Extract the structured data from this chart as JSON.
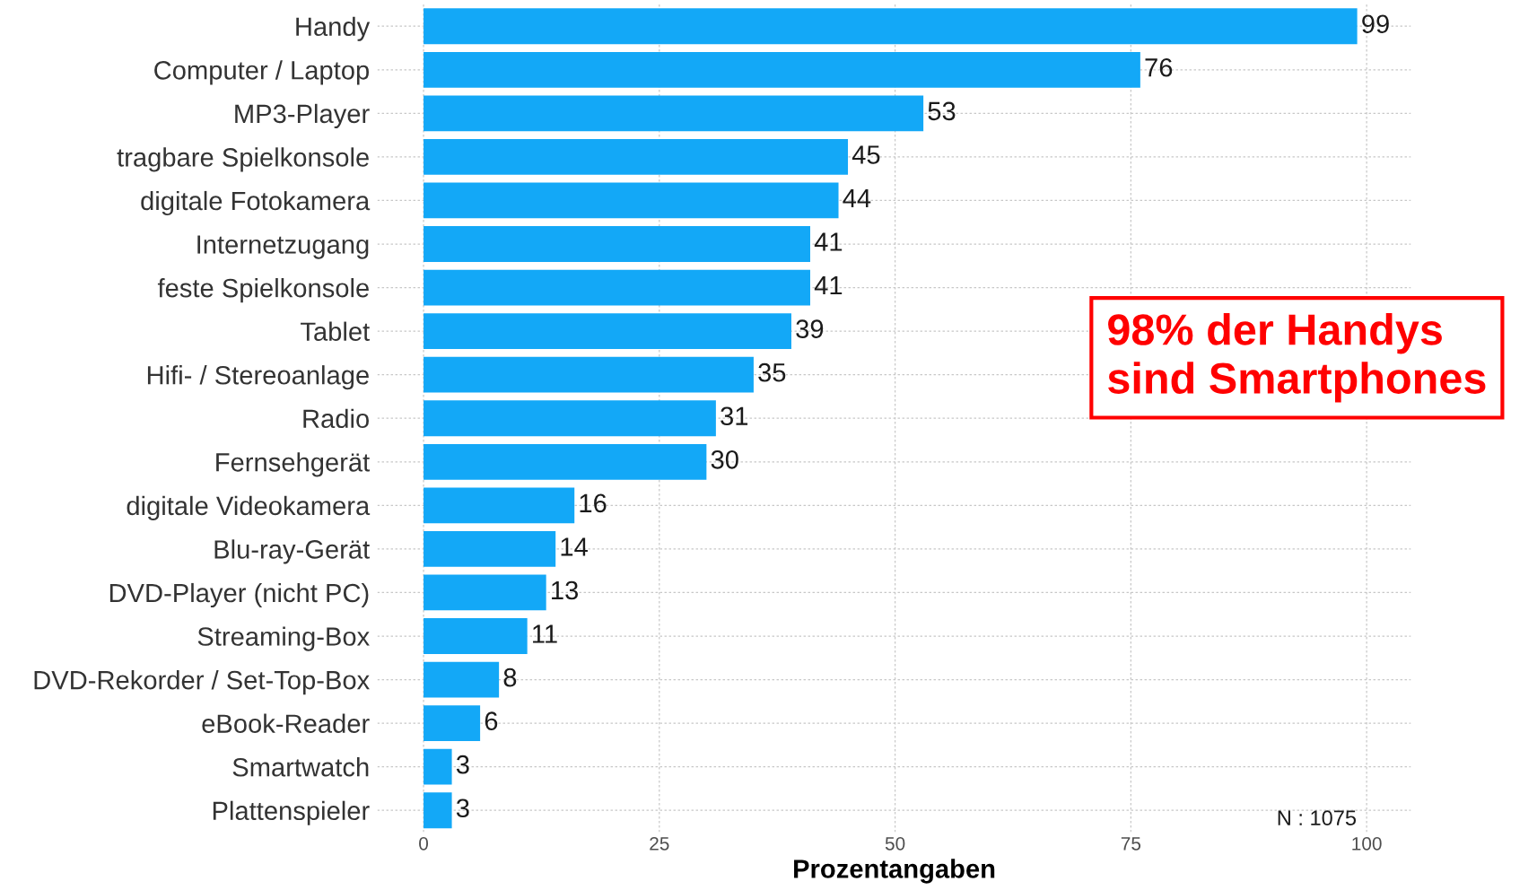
{
  "chart_data": {
    "type": "bar",
    "orientation": "horizontal",
    "xlabel": "Prozentangaben",
    "categories": [
      "Handy",
      "Computer / Laptop",
      "MP3-Player",
      "tragbare Spielkonsole",
      "digitale Fotokamera",
      "Internetzugang",
      "feste Spielkonsole",
      "Tablet",
      "Hifi- / Stereoanlage",
      "Radio",
      "Fernsehgerät",
      "digitale Videokamera",
      "Blu-ray-Gerät",
      "DVD-Player (nicht PC)",
      "Streaming-Box",
      "DVD-Rekorder / Set-Top-Box",
      "eBook-Reader",
      "Smartwatch",
      "Plattenspieler"
    ],
    "values": [
      99,
      76,
      53,
      45,
      44,
      41,
      41,
      39,
      35,
      31,
      30,
      16,
      14,
      13,
      11,
      8,
      6,
      3,
      3
    ],
    "color": "#13a8f7",
    "data_labels": true,
    "xlim": [
      -4.9,
      104.7
    ],
    "xticks": [
      0,
      25,
      50,
      75,
      100
    ],
    "grid": true,
    "annotations": [
      "98% der Handys\nsind Smartphones",
      "N : 1075"
    ]
  }
}
